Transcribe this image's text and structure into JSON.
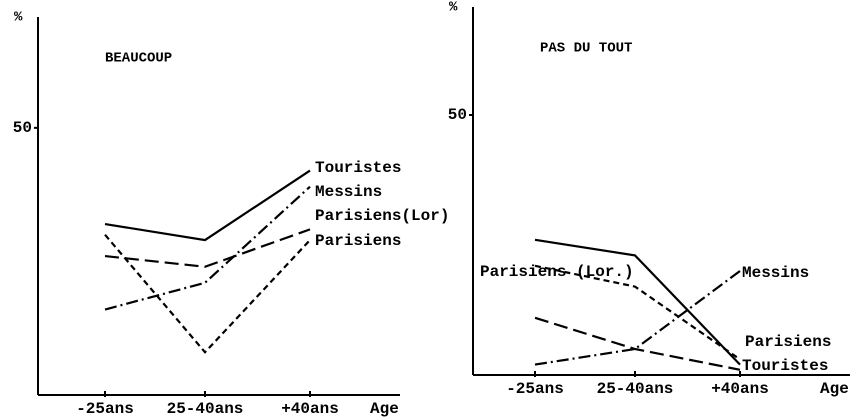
{
  "chart_data": [
    {
      "type": "line",
      "title": "BEAUCOUP",
      "ylabel": "%",
      "xlabel": "Age",
      "categories": [
        "-25ans",
        "25-40ans",
        "+40ans"
      ],
      "ylim": [
        0,
        70
      ],
      "yticks": [
        50
      ],
      "series": [
        {
          "name": "Touristes",
          "color": "#000000",
          "linestyle": "solid",
          "values": [
            32,
            29,
            42
          ]
        },
        {
          "name": "Messins",
          "color": "#000000",
          "linestyle": "dashdot",
          "values": [
            16,
            21,
            39
          ]
        },
        {
          "name": "Parisiens(Lor)",
          "color": "#000000",
          "linestyle": "longdash",
          "values": [
            26,
            24,
            31
          ]
        },
        {
          "name": "Parisiens",
          "color": "#000000",
          "linestyle": "shortdash",
          "values": [
            30,
            8,
            29
          ]
        }
      ]
    },
    {
      "type": "line",
      "title": "PAS DU TOUT",
      "ylabel": "%",
      "xlabel": "Age",
      "categories": [
        "-25ans",
        "25-40ans",
        "+40ans"
      ],
      "ylim": [
        0,
        70
      ],
      "yticks": [
        50
      ],
      "series": [
        {
          "name": "Touristes",
          "color": "#000000",
          "linestyle": "solid",
          "values": [
            26,
            23,
            2
          ]
        },
        {
          "name": "Parisiens (Lor.)",
          "color": "#000000",
          "linestyle": "shortdash",
          "values": [
            21,
            17,
            3
          ]
        },
        {
          "name": "Parisiens",
          "color": "#000000",
          "linestyle": "longdash",
          "values": [
            11,
            5,
            1
          ]
        },
        {
          "name": "Messins",
          "color": "#000000",
          "linestyle": "dashdot",
          "values": [
            2,
            5,
            20
          ]
        }
      ]
    }
  ]
}
